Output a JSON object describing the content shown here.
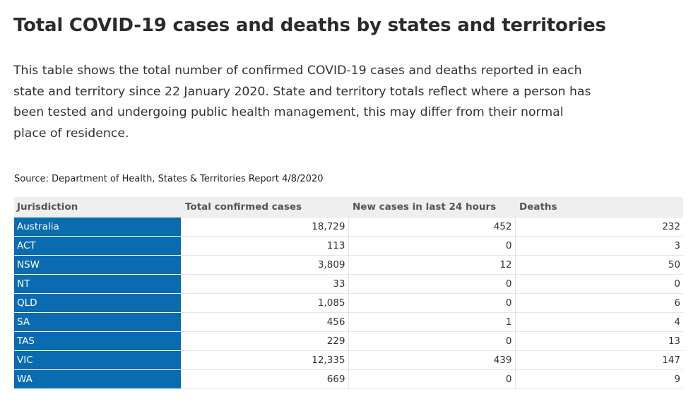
{
  "page": {
    "title": "Total COVID-19 cases and deaths by states and territories",
    "intro": "This table shows the total number of confirmed COVID-19 cases and deaths reported in each state and territory since 22 January 2020. State and territory totals reflect where a person has been tested and undergoing public health management, this may differ from their normal place of residence.",
    "source": "Source: Department of Health, States & Territories Report 4/8/2020"
  },
  "table": {
    "headers": [
      "Jurisdiction",
      "Total confirmed cases",
      "New cases in last 24 hours",
      "Deaths"
    ],
    "rows": [
      [
        "Australia",
        "18,729",
        "452",
        "232"
      ],
      [
        "ACT",
        "113",
        "0",
        "3"
      ],
      [
        "NSW",
        "3,809",
        "12",
        "50"
      ],
      [
        "NT",
        "33",
        "0",
        "0"
      ],
      [
        "QLD",
        "1,085",
        "0",
        "6"
      ],
      [
        "SA",
        "456",
        "1",
        "4"
      ],
      [
        "TAS",
        "229",
        "0",
        "13"
      ],
      [
        "VIC",
        "12,335",
        "439",
        "147"
      ],
      [
        "WA",
        "669",
        "0",
        "9"
      ]
    ]
  },
  "colors": {
    "jurisdiction_cell": "#0a6bb0",
    "header_background": "#efefef"
  }
}
